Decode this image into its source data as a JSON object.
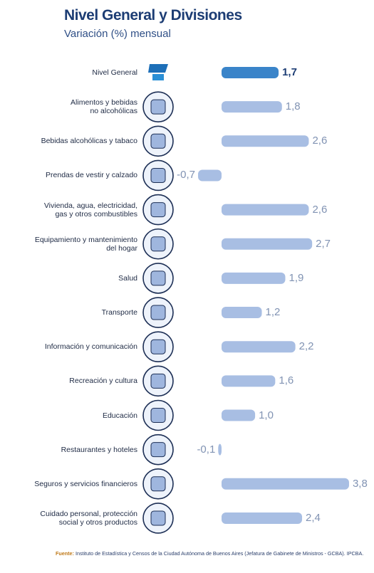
{
  "chart_data": {
    "type": "bar",
    "orientation": "horizontal",
    "title": "Nivel General y Divisiones",
    "subtitle": "Variación (%) mensual",
    "categories": [
      "Nivel General",
      "Alimentos y bebidas\nno alcohólicas",
      "Bebidas alcohólicas y tabaco",
      "Prendas de vestir y calzado",
      "Vivienda, agua, electricidad,\ngas y otros combustibles",
      "Equipamiento y mantenimiento\ndel hogar",
      "Salud",
      "Transporte",
      "Información y comunicación",
      "Recreación y cultura",
      "Educación",
      "Restaurantes y hoteles",
      "Seguros y servicios financieros",
      "Cuidado personal, protección\nsocial y otros productos"
    ],
    "values": [
      1.7,
      1.8,
      2.6,
      -0.7,
      2.6,
      2.7,
      1.9,
      1.2,
      2.2,
      1.6,
      1.0,
      -0.1,
      3.8,
      2.4
    ],
    "value_labels": [
      "1,7",
      "1,8",
      "2,6",
      "-0,7",
      "2,6",
      "2,7",
      "1,9",
      "1,2",
      "2,2",
      "1,6",
      "1,0",
      "-0,1",
      "3,8",
      "2,4"
    ],
    "colors": [
      "#3a84c9",
      "#a8bee3",
      "#a8bee3",
      "#a8bee3",
      "#a8bee3",
      "#a8bee3",
      "#a8bee3",
      "#a8bee3",
      "#a8bee3",
      "#a8bee3",
      "#a8bee3",
      "#a8bee3",
      "#a8bee3",
      "#a8bee3"
    ],
    "source_label": "Fuente:",
    "source_text": "Instituto de Estadística y Censos de la Ciudad Autónoma de Buenos Aires (Jefatura de Gabinete de Ministros - GCBA). IPCBA."
  }
}
